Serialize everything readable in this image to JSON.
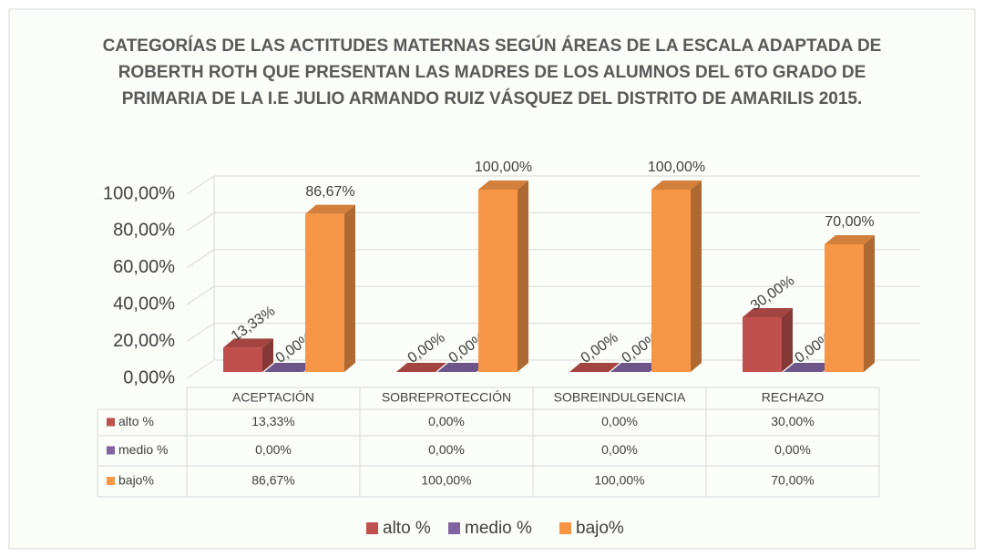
{
  "chart_data": {
    "type": "bar3d",
    "title": "CATEGORÍAS DE LAS ACTITUDES MATERNAS SEGÚN ÁREAS DE LA ESCALA ADAPTADA DE ROBERTH ROTH QUE PRESENTAN LAS MADRES DE LOS ALUMNOS DEL 6TO GRADO DE PRIMARIA DE LA I.E JULIO ARMANDO RUIZ VÁSQUEZ DEL DISTRITO DE AMARILIS 2015.",
    "categories": [
      "ACEPTACIÓN",
      "SOBREPROTECCIÓN",
      "SOBREINDULGENCIA",
      "RECHAZO"
    ],
    "series": [
      {
        "name": "alto %",
        "color": "#c0504d",
        "values": [
          13.33,
          0,
          0,
          30
        ],
        "value_labels": [
          "13,33%",
          "0,00%",
          "0,00%",
          "30,00%"
        ]
      },
      {
        "name": "medio %",
        "color": "#8064a2",
        "values": [
          0,
          0,
          0,
          0
        ],
        "value_labels": [
          "0,00%",
          "0,00%",
          "0,00%",
          "0,00%"
        ]
      },
      {
        "name": "bajo%",
        "color": "#f79646",
        "values": [
          86.67,
          100,
          100,
          70
        ],
        "value_labels": [
          "86,67%",
          "100,00%",
          "100,00%",
          "70,00%"
        ]
      }
    ],
    "ylim": [
      0,
      100
    ],
    "yticks": [
      {
        "value": 0,
        "label": "0,00%"
      },
      {
        "value": 20,
        "label": "20,00%"
      },
      {
        "value": 40,
        "label": "40,00%"
      },
      {
        "value": 60,
        "label": "60,00%"
      },
      {
        "value": 80,
        "label": "80,00%"
      },
      {
        "value": 100,
        "label": "100,00%"
      }
    ],
    "grid": true,
    "legend": "bottom",
    "data_table": true
  }
}
